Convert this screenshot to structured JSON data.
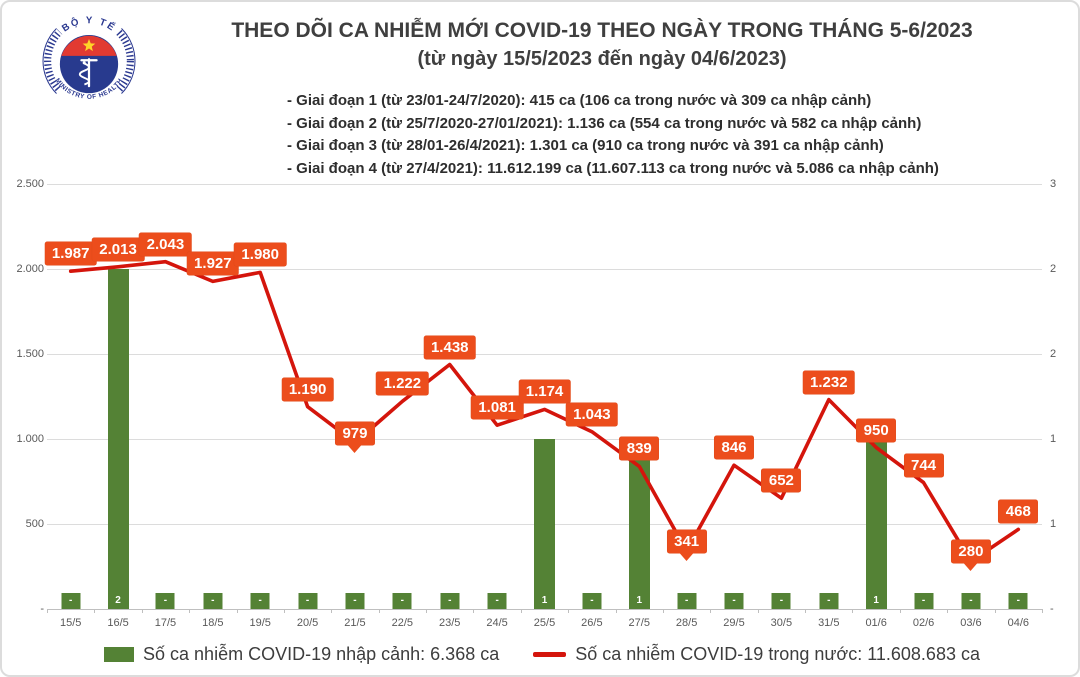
{
  "header": {
    "title": "THEO DÕI CA NHIỄM MỚI COVID-19 THEO NGÀY TRONG THÁNG 5-6/2023",
    "subtitle": "(từ ngày 15/5/2023 đến ngày 04/6/2023)",
    "bullets": [
      "- Giai đoạn 1 (từ 23/01-24/7/2020): 415 ca (106 ca trong nước và 309 ca nhập cảnh)",
      "- Giai đoạn 2 (từ 25/7/2020-27/01/2021): 1.136 ca (554 ca trong nước và 582 ca nhập cảnh)",
      "- Giai đoạn 3 (từ 28/01-26/4/2021): 1.301 ca (910 ca trong nước và 391 ca nhập cảnh)",
      "- Giai đoạn 4 (từ 27/4/2021): 11.612.199 ca (11.607.113 ca trong nước và 5.086 ca nhập cảnh)"
    ],
    "logo": {
      "top_text": "BỘ Y TẾ",
      "bottom_text": "MINISTRY OF HEALTH"
    }
  },
  "chart_data": {
    "type": "combo-bar-line",
    "categories": [
      "15/5",
      "16/5",
      "17/5",
      "18/5",
      "19/5",
      "20/5",
      "21/5",
      "22/5",
      "23/5",
      "24/5",
      "25/5",
      "26/5",
      "27/5",
      "28/5",
      "29/5",
      "30/5",
      "31/5",
      "01/6",
      "02/6",
      "03/6",
      "04/6"
    ],
    "series": [
      {
        "name": "Số ca nhiễm COVID-19 nhập cảnh",
        "type": "bar",
        "axis": "right",
        "color": "#548235",
        "values": [
          0,
          2,
          0,
          0,
          0,
          0,
          0,
          0,
          0,
          0,
          1,
          0,
          1,
          0,
          0,
          0,
          0,
          1,
          0,
          0,
          0
        ],
        "labels": [
          "-",
          "2",
          "-",
          "-",
          "-",
          "-",
          "-",
          "-",
          "-",
          "-",
          "1",
          "-",
          "1",
          "-",
          "-",
          "-",
          "-",
          "1",
          "-",
          "-",
          "-"
        ]
      },
      {
        "name": "Số ca nhiễm COVID-19 trong nước",
        "type": "line",
        "axis": "left",
        "color": "#d4150c",
        "values": [
          1987,
          2013,
          2043,
          1927,
          1980,
          1190,
          979,
          1222,
          1438,
          1081,
          1174,
          1043,
          839,
          341,
          846,
          652,
          1232,
          950,
          744,
          280,
          468
        ],
        "labels": [
          "1.987",
          "2.013",
          "2.043",
          "1.927",
          "1.980",
          "1.190",
          "979",
          "1.222",
          "1.438",
          "1.081",
          "1.174",
          "1.043",
          "839",
          "341",
          "846",
          "652",
          "1.232",
          "950",
          "744",
          "280",
          "468"
        ]
      }
    ],
    "left_axis": {
      "min": 0,
      "max": 2500,
      "tick_labels_top_to_bottom": [
        "2.500",
        "2.000",
        "1.500",
        "1.000",
        "500",
        "-"
      ]
    },
    "right_axis": {
      "min": 0,
      "max": 2.5,
      "tick_labels_top_to_bottom": [
        "3",
        "2",
        "2",
        "1",
        "1",
        "-"
      ]
    },
    "grid": true,
    "legend_position": "bottom",
    "data_label_box_color": "#ec4d1c"
  },
  "legend": {
    "imported": "Số ca nhiễm COVID-19 nhập cảnh: 6.368 ca",
    "domestic": "Số ca nhiễm COVID-19 trong nước: 11.608.683 ca"
  },
  "colors": {
    "bar_green": "#548235",
    "line_red": "#d4150c",
    "label_box_orange": "#ec4d1c",
    "title_gray": "#3f3f3f",
    "axis_gray": "#595959",
    "gridline": "#dcdcdc",
    "logo_blue": "#2b3990",
    "logo_red": "#e23a31",
    "logo_star_yellow": "#ffd428"
  }
}
